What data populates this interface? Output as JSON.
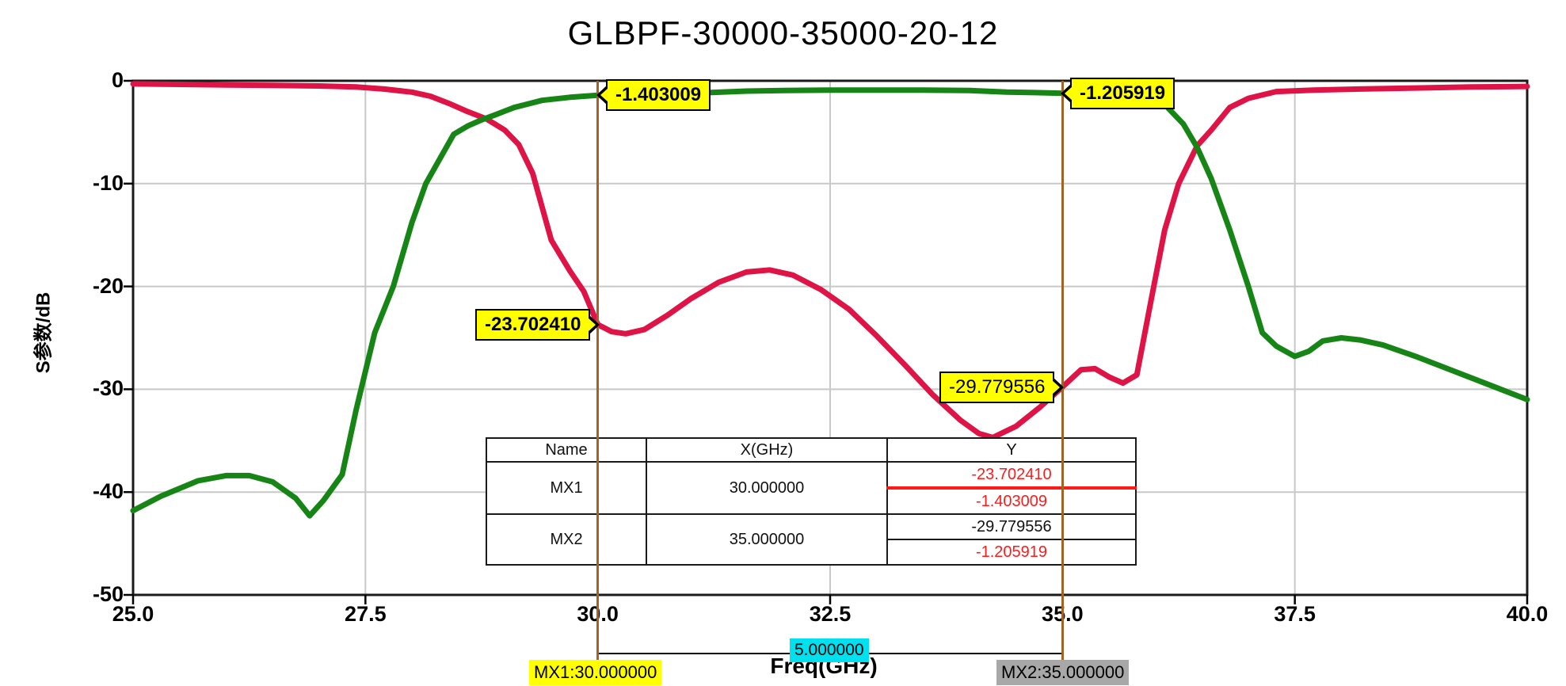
{
  "title": "GLBPF-30000-35000-20-12",
  "colors": {
    "red_curve": "#DE1346",
    "green_curve": "#168516",
    "marker_line": "#A06428",
    "grid": "#C8C8C8",
    "plot_border": "#1A1A1A",
    "callout_bg": "#FFFF00",
    "mx1_bg": "#FFFF00",
    "interval_bg": "#00E0EE",
    "mx2_bg": "#A8A8A8",
    "table_red": "#FF1A1A"
  },
  "axes": {
    "x": {
      "label": "Freq(GHz)",
      "min": 25,
      "max": 40,
      "ticks": [
        {
          "v": 25,
          "label": "25.0"
        },
        {
          "v": 27.5,
          "label": "27.5"
        },
        {
          "v": 30,
          "label": "30.0"
        },
        {
          "v": 32.5,
          "label": "32.5"
        },
        {
          "v": 35,
          "label": "35.0"
        },
        {
          "v": 37.5,
          "label": "37.5"
        },
        {
          "v": 40,
          "label": "40.0"
        }
      ]
    },
    "y": {
      "label": "S参数/dB",
      "min": -50,
      "max": 0,
      "ticks": [
        {
          "v": 0,
          "label": "0"
        },
        {
          "v": -10,
          "label": "-10"
        },
        {
          "v": -20,
          "label": "-20"
        },
        {
          "v": -30,
          "label": "-30"
        },
        {
          "v": -40,
          "label": "-40"
        },
        {
          "v": -50,
          "label": "-50"
        }
      ]
    }
  },
  "chart_data": {
    "type": "line",
    "title": "GLBPF-30000-35000-20-12",
    "xlabel": "Freq(GHz)",
    "ylabel": "S参数/dB",
    "xlim": [
      25,
      40
    ],
    "ylim": [
      -50,
      0
    ],
    "grid": true,
    "legend": false,
    "series": [
      {
        "name": "red",
        "color": "#DE1346",
        "x": [
          25.0,
          25.5,
          26.0,
          26.5,
          27.0,
          27.4,
          27.7,
          28.0,
          28.2,
          28.4,
          28.6,
          28.8,
          29.0,
          29.15,
          29.3,
          29.5,
          29.7,
          29.85,
          30.0,
          30.15,
          30.3,
          30.5,
          30.75,
          31.0,
          31.3,
          31.6,
          31.85,
          32.1,
          32.4,
          32.7,
          33.0,
          33.3,
          33.6,
          33.9,
          34.1,
          34.25,
          34.5,
          34.75,
          35.0,
          35.2,
          35.35,
          35.5,
          35.65,
          35.8,
          35.95,
          36.1,
          36.25,
          36.45,
          36.6,
          36.8,
          37.0,
          37.3,
          37.7,
          38.2,
          38.8,
          39.4,
          40.0
        ],
        "y": [
          -0.3,
          -0.35,
          -0.4,
          -0.45,
          -0.5,
          -0.6,
          -0.8,
          -1.1,
          -1.5,
          -2.2,
          -3.0,
          -3.7,
          -4.8,
          -6.2,
          -9.0,
          -15.5,
          -18.5,
          -20.5,
          -23.70241,
          -24.4,
          -24.6,
          -24.2,
          -22.8,
          -21.2,
          -19.6,
          -18.6,
          -18.4,
          -18.9,
          -20.3,
          -22.2,
          -24.8,
          -27.6,
          -30.5,
          -33.0,
          -34.3,
          -34.7,
          -33.6,
          -31.8,
          -29.779556,
          -28.1,
          -28.0,
          -28.8,
          -29.4,
          -28.6,
          -21.5,
          -14.5,
          -10.0,
          -6.3,
          -4.8,
          -2.6,
          -1.7,
          -1.05,
          -0.9,
          -0.8,
          -0.7,
          -0.6,
          -0.55
        ]
      },
      {
        "name": "green",
        "color": "#168516",
        "x": [
          25.0,
          25.3,
          25.7,
          26.0,
          26.25,
          26.5,
          26.75,
          26.9,
          27.05,
          27.25,
          27.4,
          27.6,
          27.8,
          28.0,
          28.15,
          28.3,
          28.45,
          28.6,
          28.75,
          28.9,
          29.1,
          29.4,
          29.7,
          30.0,
          30.4,
          30.8,
          31.2,
          31.6,
          32.0,
          32.5,
          33.0,
          33.5,
          34.0,
          34.4,
          34.7,
          35.0,
          35.3,
          35.6,
          35.9,
          36.1,
          36.3,
          36.45,
          36.6,
          36.8,
          37.0,
          37.15,
          37.3,
          37.5,
          37.65,
          37.8,
          38.0,
          38.2,
          38.45,
          38.8,
          39.2,
          39.6,
          40.0
        ],
        "y": [
          -41.8,
          -40.4,
          -38.9,
          -38.4,
          -38.4,
          -39.0,
          -40.6,
          -42.3,
          -40.8,
          -38.3,
          -32.0,
          -24.5,
          -20.0,
          -13.8,
          -10.0,
          -7.6,
          -5.2,
          -4.4,
          -3.8,
          -3.3,
          -2.6,
          -1.9,
          -1.6,
          -1.403009,
          -1.3,
          -1.25,
          -1.15,
          -1.0,
          -0.95,
          -0.9,
          -0.9,
          -0.9,
          -0.95,
          -1.1,
          -1.15,
          -1.205919,
          -1.1,
          -1.0,
          -1.3,
          -2.3,
          -4.2,
          -6.5,
          -9.5,
          -14.5,
          -20.0,
          -24.5,
          -25.8,
          -26.8,
          -26.3,
          -25.3,
          -25.0,
          -25.2,
          -25.7,
          -26.8,
          -28.2,
          -29.6,
          -31.0
        ]
      }
    ]
  },
  "markers": {
    "mx1": {
      "name": "MX1",
      "freq_ghz": 30.0,
      "tag": "MX1:30.000000",
      "values_db": [
        -23.70241,
        -1.403009
      ]
    },
    "mx2": {
      "name": "MX2",
      "freq_ghz": 35.0,
      "tag": "MX2:35.000000",
      "values_db": [
        -29.779556,
        -1.205919
      ]
    },
    "interval_label": "5.000000",
    "callouts": [
      {
        "text": "-1.403009",
        "freq": 30,
        "db": -1.403009,
        "dir": "east",
        "weight": "bold"
      },
      {
        "text": "-1.205919",
        "freq": 35,
        "db": -1.205919,
        "dir": "east",
        "weight": "bold"
      },
      {
        "text": "-23.702410",
        "freq": 30,
        "db": -23.70241,
        "dir": "west",
        "weight": "bold"
      },
      {
        "text": "-29.779556",
        "freq": 35,
        "db": -29.779556,
        "dir": "west",
        "weight": "normal"
      }
    ]
  },
  "table": {
    "headers": [
      "Name",
      "X(GHz)",
      "Y"
    ],
    "rows": [
      {
        "name": "MX1",
        "x": "30.000000",
        "y1": "-23.702410",
        "y2": "-1.403009",
        "y1_color": "red",
        "y2_color": "red",
        "divider": "red"
      },
      {
        "name": "MX2",
        "x": "35.000000",
        "y1": "-29.779556",
        "y2": "-1.205919",
        "y1_color": "black",
        "y2_color": "red",
        "divider": "black"
      }
    ]
  }
}
